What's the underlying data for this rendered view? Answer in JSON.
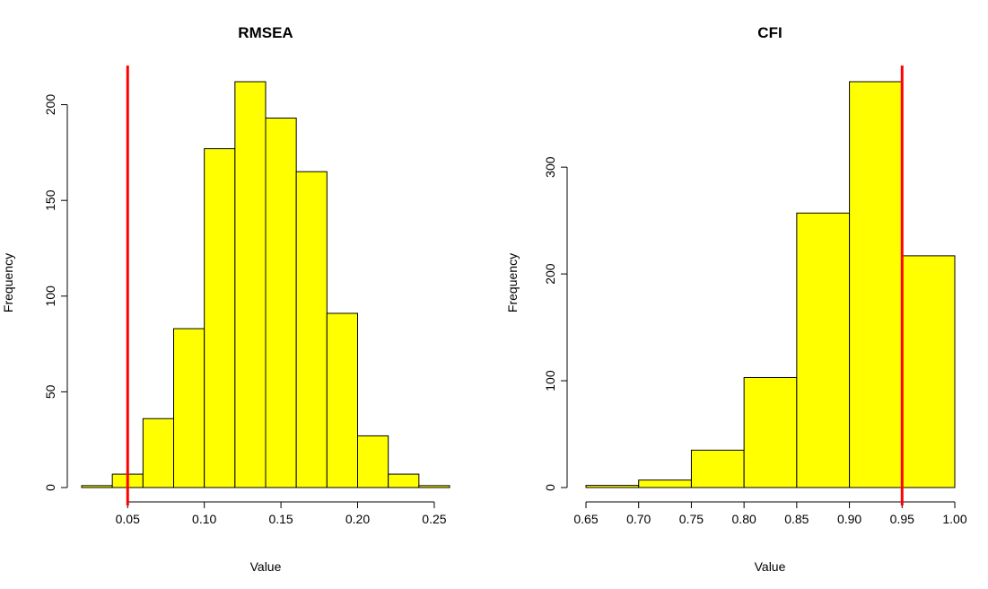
{
  "chart_data": [
    {
      "type": "bar",
      "subtype": "histogram",
      "title": "RMSEA",
      "xlabel": "Value",
      "ylabel": "Frequency",
      "bin_edges": [
        0.02,
        0.04,
        0.06,
        0.08,
        0.1,
        0.12,
        0.14,
        0.16,
        0.18,
        0.2,
        0.22,
        0.24,
        0.26
      ],
      "values": [
        1,
        7,
        36,
        83,
        177,
        212,
        193,
        165,
        91,
        27,
        7,
        1
      ],
      "xlim": [
        0.02,
        0.26
      ],
      "ylim": [
        0,
        212
      ],
      "x_ticks": [
        0.05,
        0.1,
        0.15,
        0.2,
        0.25
      ],
      "x_tick_labels": [
        "0.05",
        "0.10",
        "0.15",
        "0.20",
        "0.25"
      ],
      "y_ticks": [
        0,
        50,
        100,
        150,
        200
      ],
      "y_tick_labels": [
        "0",
        "50",
        "100",
        "150",
        "200"
      ],
      "reference_line": {
        "x": 0.05,
        "color": "#ff0000"
      },
      "bar_fill": "#ffff00",
      "bar_stroke": "#000000",
      "grid": false
    },
    {
      "type": "bar",
      "subtype": "histogram",
      "title": "CFI",
      "xlabel": "Value",
      "ylabel": "Frequency",
      "bin_edges": [
        0.65,
        0.7,
        0.75,
        0.8,
        0.85,
        0.9,
        0.95,
        1.0
      ],
      "values": [
        2,
        7,
        35,
        103,
        257,
        380,
        217
      ],
      "xlim": [
        0.65,
        1.0
      ],
      "ylim": [
        0,
        380
      ],
      "x_ticks": [
        0.65,
        0.7,
        0.75,
        0.8,
        0.85,
        0.9,
        0.95,
        1.0
      ],
      "x_tick_labels": [
        "0.65",
        "0.70",
        "0.75",
        "0.80",
        "0.85",
        "0.90",
        "0.95",
        "1.00"
      ],
      "y_ticks": [
        0,
        100,
        200,
        300
      ],
      "y_tick_labels": [
        "0",
        "100",
        "200",
        "300"
      ],
      "reference_line": {
        "x": 0.95,
        "color": "#ff0000"
      },
      "bar_fill": "#ffff00",
      "bar_stroke": "#000000",
      "grid": false
    }
  ]
}
